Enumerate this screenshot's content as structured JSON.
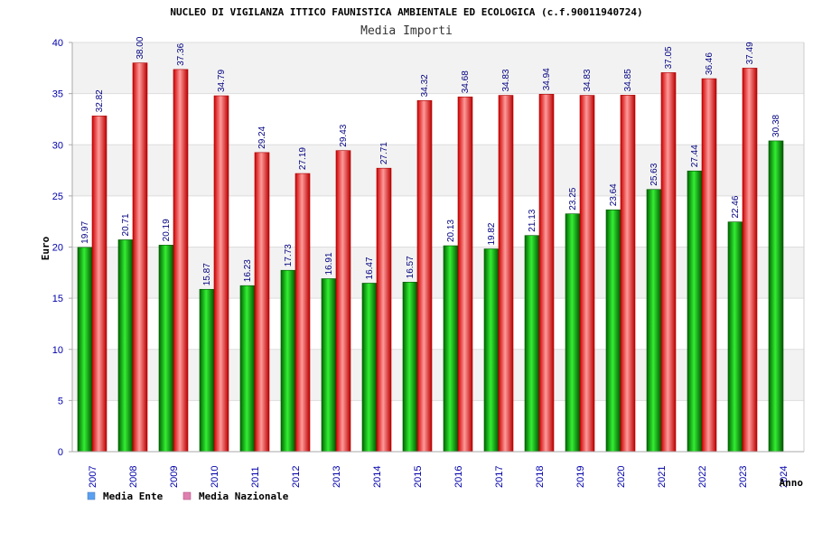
{
  "chart_data": {
    "type": "bar",
    "title": "NUCLEO DI VIGILANZA ITTICO FAUNISTICA AMBIENTALE ED ECOLOGICA (c.f.90011940724)",
    "subtitle": "Media Importi",
    "xlabel": "Anno",
    "ylabel": "Euro",
    "ylim": [
      0,
      40
    ],
    "yticks": [
      0,
      5,
      10,
      15,
      20,
      25,
      30,
      35,
      40
    ],
    "categories": [
      "2007",
      "2008",
      "2009",
      "2010",
      "2011",
      "2012",
      "2013",
      "2014",
      "2015",
      "2016",
      "2017",
      "2018",
      "2019",
      "2020",
      "2021",
      "2022",
      "2023",
      "2024"
    ],
    "series": [
      {
        "name": "Media Ente",
        "color": "#00aa00",
        "legend_color": "#5aa0f0",
        "values": [
          19.97,
          20.71,
          20.19,
          15.87,
          16.23,
          17.73,
          16.91,
          16.47,
          16.57,
          20.13,
          19.82,
          21.13,
          23.25,
          23.64,
          25.63,
          27.44,
          22.46,
          30.38
        ],
        "labels": [
          "19.97",
          "20.71",
          "20.19",
          "15.87",
          "16.23",
          "17.73",
          "16.91",
          "16.47",
          "16.57",
          "20.13",
          "19.82",
          "21.13",
          "23.25",
          "23.64",
          "25.63",
          "27.44",
          "22.46",
          "30.38"
        ]
      },
      {
        "name": "Media Nazionale",
        "color": "#ee1111",
        "legend_color": "#e080b0",
        "values": [
          32.82,
          38.0,
          37.36,
          34.79,
          29.24,
          27.19,
          29.43,
          27.71,
          34.32,
          34.68,
          34.83,
          34.94,
          34.83,
          34.85,
          37.05,
          36.46,
          37.49,
          null
        ],
        "labels": [
          "32.82",
          "38.00",
          "37.36",
          "34.79",
          "29.24",
          "27.19",
          "29.43",
          "27.71",
          "34.32",
          "34.68",
          "34.83",
          "34.94",
          "34.83",
          "34.85",
          "37.05",
          "36.46",
          "37.49",
          ""
        ]
      }
    ],
    "legend_position": "bottom-left"
  }
}
